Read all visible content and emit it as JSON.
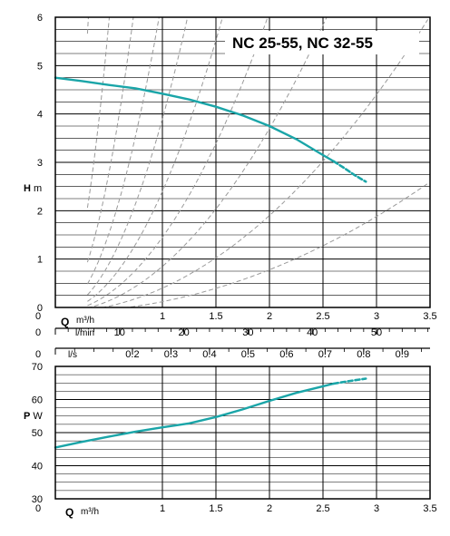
{
  "colors": {
    "curve": "#1aa5a8",
    "grid": "#000000",
    "system_curves": "#9a9a9a"
  },
  "chart_data": [
    {
      "type": "line",
      "title": "NC 25-55,  NC 32-55",
      "ylabel_main": "H",
      "ylabel_unit": "m",
      "xlabel_main": "Q",
      "xlabel_unit": "m³/h",
      "xlim": [
        0,
        3.5
      ],
      "ylim": [
        0,
        6
      ],
      "x_ticks": [
        "0",
        "1",
        "1.5",
        "2",
        "2.5",
        "3",
        "3.5"
      ],
      "x_tick_values": [
        0,
        1,
        1.5,
        2,
        2.5,
        3,
        3.5
      ],
      "y_ticks": [
        "0",
        "1",
        "2",
        "3",
        "4",
        "5",
        "6"
      ],
      "grid": true,
      "series": [
        {
          "x": [
            0,
            0.25,
            0.5,
            0.75,
            1.0,
            1.25,
            1.5,
            1.75,
            2.0,
            2.25,
            2.5,
            2.6
          ],
          "y": [
            4.75,
            4.68,
            4.6,
            4.53,
            4.42,
            4.3,
            4.15,
            3.97,
            3.75,
            3.48,
            3.15,
            3.02
          ],
          "style": "solid"
        },
        {
          "x": [
            2.6,
            2.7,
            2.8,
            2.9
          ],
          "y": [
            3.02,
            2.88,
            2.73,
            2.6
          ],
          "style": "dashed"
        }
      ],
      "system_curves_k": [
        64,
        24,
        11.5,
        6.5,
        4.0,
        2.5,
        1.55,
        0.95,
        0.5,
        0.22
      ],
      "secondary_axes": [
        {
          "unit": "l/min",
          "ticks": [
            "0",
            "10",
            "20",
            "30",
            "40",
            "50"
          ],
          "values": [
            0,
            10,
            20,
            30,
            40,
            50
          ],
          "per_m3h": 16.6667
        },
        {
          "unit": "l/s",
          "ticks": [
            "0",
            "0.2",
            "0.3",
            "0.4",
            "0.5",
            "0.6",
            "0.7",
            "0.8",
            "0.9"
          ],
          "values": [
            0,
            0.2,
            0.3,
            0.4,
            0.5,
            0.6,
            0.7,
            0.8,
            0.9
          ],
          "per_m3h": 0.27778
        }
      ]
    },
    {
      "type": "line",
      "ylabel_main": "P",
      "ylabel_unit": "W",
      "xlabel_main": "Q",
      "xlabel_unit": "m³/h",
      "xlim": [
        0,
        3.5
      ],
      "ylim": [
        30,
        70
      ],
      "x_ticks": [
        "0",
        "1",
        "1.5",
        "2",
        "2.5",
        "3",
        "3.5"
      ],
      "x_tick_values": [
        0,
        1,
        1.5,
        2,
        2.5,
        3,
        3.5
      ],
      "y_ticks": [
        "30",
        "40",
        "50",
        "60",
        "70"
      ],
      "grid": true,
      "series": [
        {
          "x": [
            0,
            0.25,
            0.5,
            0.75,
            1.0,
            1.25,
            1.5,
            1.75,
            2.0,
            2.25,
            2.5,
            2.6
          ],
          "y": [
            45.5,
            47.2,
            48.8,
            50.3,
            51.6,
            52.8,
            54.7,
            57.0,
            59.6,
            62.0,
            64.0,
            64.8
          ],
          "style": "solid"
        },
        {
          "x": [
            2.6,
            2.75,
            2.9
          ],
          "y": [
            64.8,
            65.6,
            66.3
          ],
          "style": "dashed"
        }
      ]
    }
  ]
}
